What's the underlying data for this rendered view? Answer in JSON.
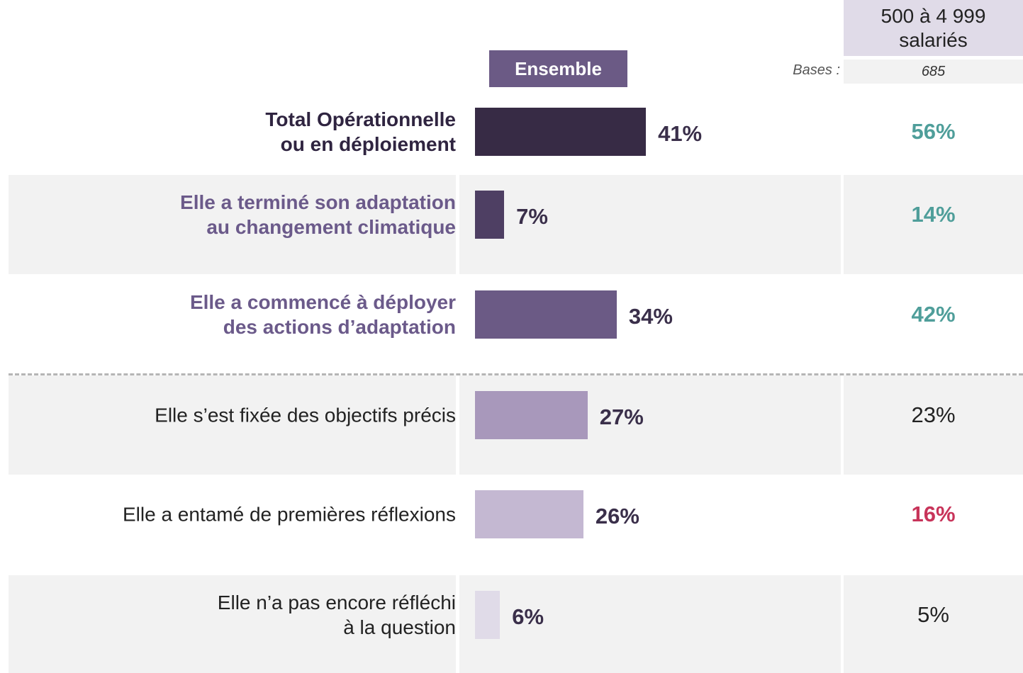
{
  "chart_data": {
    "type": "bar",
    "orientation": "horizontal",
    "categories": [
      "Total Opérationnelle\nou en déploiement",
      "Elle a terminé son adaptation\nau changement climatique",
      "Elle a commencé à déployer\ndes actions d’adaptation",
      "Elle s’est fixée des objectifs précis",
      "Elle a entamé de premières réflexions",
      "Elle n’a pas encore réfléchi\nà la question"
    ],
    "xlim": [
      0,
      100
    ],
    "base_label": "Bases :",
    "series": [
      {
        "name": "Ensemble",
        "colors": [
          "#372b45",
          "#4e3f63",
          "#6b5a85",
          "#a898bb",
          "#c4b8d2",
          "#e0dbe8"
        ],
        "values": [
          41,
          7,
          34,
          27,
          26,
          6
        ],
        "value_labels": [
          "41%",
          "7%",
          "34%",
          "27%",
          "26%",
          "6%"
        ]
      },
      {
        "name": "500 à 4 999\nsalariés",
        "base": 685,
        "colors": [
          "#4f9e9a",
          "#4f9e9a",
          "#4f9e9a",
          "#222222",
          "#c8345a",
          "#222222"
        ],
        "values": [
          56,
          14,
          42,
          23,
          16,
          5
        ],
        "value_labels": [
          "56%",
          "14%",
          "42%",
          "23%",
          "16%",
          "5%"
        ]
      }
    ]
  }
}
